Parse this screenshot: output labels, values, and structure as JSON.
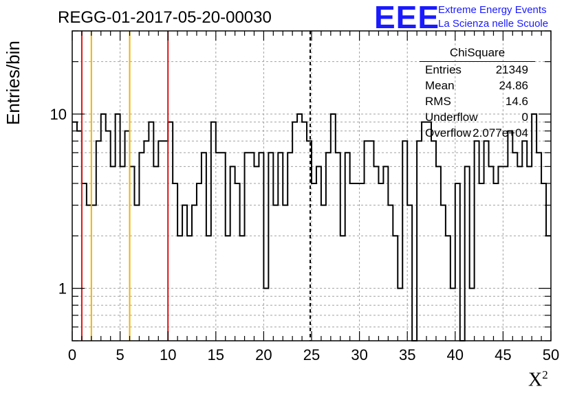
{
  "header": {
    "title": "REGG-01-2017-05-20-00030",
    "logo_text": "EEE",
    "logo_line1": "Extreme Energy Events",
    "logo_line2": "La Scienza nelle Scuole"
  },
  "stats_box": {
    "name": "ChiSquare",
    "rows": [
      {
        "key": "Entries",
        "value": "21349"
      },
      {
        "key": "Mean",
        "value": "24.86"
      },
      {
        "key": "RMS",
        "value": "14.6"
      },
      {
        "key": "Underflow",
        "value": "0"
      },
      {
        "key": "Overflow",
        "value": "2.077e+04"
      }
    ]
  },
  "colors": {
    "histogram": "#000000",
    "red_line": "#dd1111",
    "orange_line": "#f0b400",
    "grid": "#a0a0a0",
    "logo": "#1a1aff"
  },
  "chart_data": {
    "type": "bar",
    "style": "step-histogram",
    "title": "REGG-01-2017-05-20-00030",
    "xlabel": "X²",
    "ylabel": "Entries/bin",
    "xlim": [
      0,
      50
    ],
    "ylim": [
      0.5,
      30
    ],
    "y_scale": "log",
    "grid": true,
    "bin_width": 0.5,
    "x_ticks": [
      0,
      5,
      10,
      15,
      20,
      25,
      30,
      35,
      40,
      45,
      50
    ],
    "y_tick_labels": [
      1,
      10
    ],
    "values": [
      9,
      8,
      4,
      3,
      3,
      7,
      10,
      8,
      5,
      10,
      5,
      8,
      5,
      3,
      6,
      7,
      9,
      5,
      7,
      7,
      9,
      4,
      2,
      3,
      2,
      3,
      4,
      6,
      2,
      9,
      6,
      6,
      2,
      5,
      4,
      2,
      6,
      6,
      5,
      6,
      1,
      6,
      3,
      6,
      3,
      6,
      9,
      10,
      9,
      7,
      4,
      5,
      3,
      6,
      10,
      6,
      2,
      6,
      4,
      4,
      4,
      7,
      7,
      5,
      4,
      5,
      3,
      2,
      1,
      7,
      3,
      0,
      7,
      9,
      9,
      7,
      5,
      3,
      2,
      1,
      4,
      0,
      5,
      1,
      7,
      4,
      7,
      5,
      4,
      5,
      5,
      8,
      6,
      5,
      7,
      5,
      10,
      6,
      4,
      2
    ],
    "vertical_lines": [
      {
        "x": 1,
        "color": "red"
      },
      {
        "x": 2,
        "color": "orange"
      },
      {
        "x": 6,
        "color": "orange"
      },
      {
        "x": 10,
        "color": "red"
      },
      {
        "x": 24.86,
        "color": "black",
        "style": "dashed"
      }
    ]
  }
}
